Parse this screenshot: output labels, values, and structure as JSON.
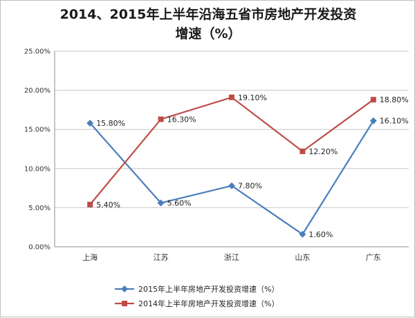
{
  "chart_data": {
    "type": "line",
    "title_line1": "2014、2015年上半年沿海五省市房地产开发投资",
    "title_line2": "增速（%）",
    "categories": [
      "上海",
      "江苏",
      "浙江",
      "山东",
      "广东"
    ],
    "ylim": [
      0,
      25
    ],
    "yticks": [
      "0.00%",
      "5.00%",
      "10.00%",
      "15.00%",
      "20.00%",
      "25.00%"
    ],
    "grid": true,
    "legend_position": "bottom",
    "series": [
      {
        "name": "2015年上半年房地产开发投资增速（%）",
        "values": [
          15.8,
          5.6,
          7.8,
          1.6,
          16.1
        ],
        "labels": [
          "15.80%",
          "5.60%",
          "7.80%",
          "1.60%",
          "16.10%"
        ],
        "color": "#4a7ebb",
        "marker": "diamond"
      },
      {
        "name": "2014年上半年房地产开发投资增速（%）",
        "values": [
          5.4,
          16.3,
          19.1,
          12.2,
          18.8
        ],
        "labels": [
          "5.40%",
          "16.30%",
          "19.10%",
          "12.20%",
          "18.80%"
        ],
        "color": "#be4b48",
        "marker": "square"
      }
    ]
  }
}
